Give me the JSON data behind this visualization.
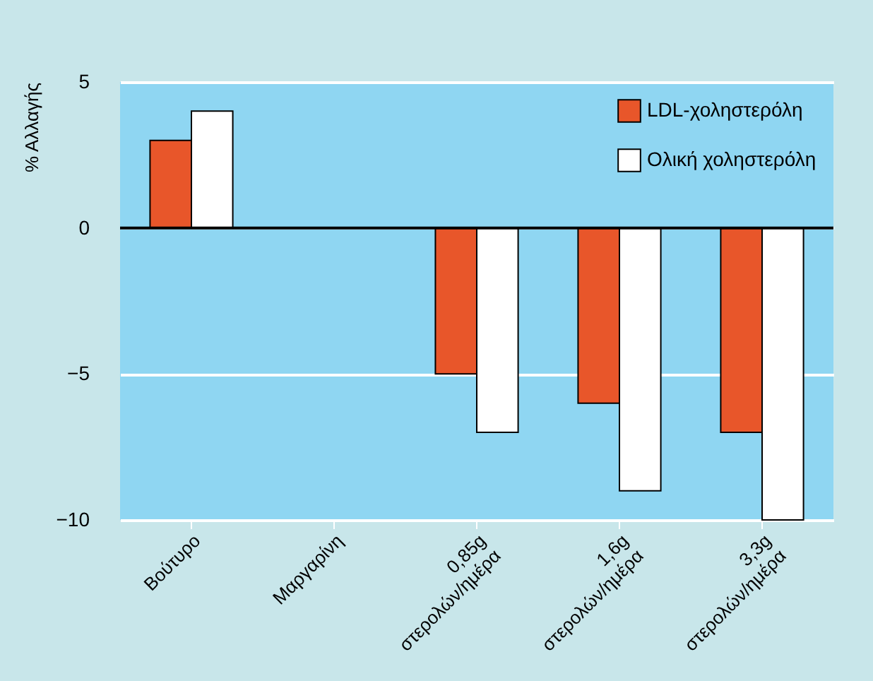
{
  "chart_data": {
    "type": "bar",
    "ylabel": "% Αλλαγής",
    "categories": [
      "Βούτυρο",
      "Μαργαρίνη",
      "0,85g\nστερολών/ημέρα",
      "1,6g\nστερολών/ημέρα",
      "3,3g\nστερολών/ημέρα"
    ],
    "series": [
      {
        "name": "LDL-χοληστερόλη",
        "color": "#e8562a",
        "values": [
          3,
          null,
          -5,
          -6,
          -7
        ]
      },
      {
        "name": "Ολική χοληστερόλη",
        "color": "#ffffff",
        "values": [
          4,
          null,
          -7,
          -9,
          -10
        ]
      }
    ],
    "ylim": [
      -10,
      5
    ],
    "yticks": [
      -10,
      -5,
      0,
      5
    ],
    "grid": "y",
    "legend": "top right",
    "ref_lines": [
      {
        "axis": "y",
        "value": 0,
        "color": "#000000"
      }
    ]
  }
}
